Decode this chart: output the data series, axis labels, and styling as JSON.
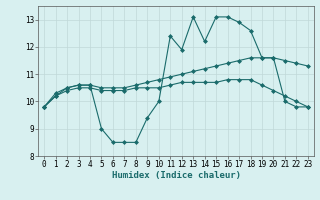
{
  "x": [
    0,
    1,
    2,
    3,
    4,
    5,
    6,
    7,
    8,
    9,
    10,
    11,
    12,
    13,
    14,
    15,
    16,
    17,
    18,
    19,
    20,
    21,
    22,
    23
  ],
  "line1": [
    9.8,
    10.3,
    10.5,
    10.6,
    10.6,
    9.0,
    8.5,
    8.5,
    8.5,
    9.4,
    10.0,
    12.4,
    11.9,
    13.1,
    12.2,
    13.1,
    13.1,
    12.9,
    12.6,
    11.6,
    11.6,
    10.0,
    9.8,
    9.8
  ],
  "line2": [
    9.8,
    10.2,
    10.5,
    10.6,
    10.6,
    10.5,
    10.5,
    10.5,
    10.6,
    10.7,
    10.8,
    10.9,
    11.0,
    11.1,
    11.2,
    11.3,
    11.4,
    11.5,
    11.6,
    11.6,
    11.6,
    11.5,
    11.4,
    11.3
  ],
  "line3": [
    9.8,
    10.2,
    10.4,
    10.5,
    10.5,
    10.4,
    10.4,
    10.4,
    10.5,
    10.5,
    10.5,
    10.6,
    10.7,
    10.7,
    10.7,
    10.7,
    10.8,
    10.8,
    10.8,
    10.6,
    10.4,
    10.2,
    10.0,
    9.8
  ],
  "line_color": "#1a6b6b",
  "bg_color": "#d8f0f0",
  "grid_color": "#c0d8d8",
  "xlabel": "Humidex (Indice chaleur)",
  "ylim": [
    8,
    13.5
  ],
  "xlim": [
    -0.5,
    23.5
  ],
  "yticks": [
    8,
    9,
    10,
    11,
    12,
    13
  ],
  "xticks": [
    0,
    1,
    2,
    3,
    4,
    5,
    6,
    7,
    8,
    9,
    10,
    11,
    12,
    13,
    14,
    15,
    16,
    17,
    18,
    19,
    20,
    21,
    22,
    23
  ],
  "tick_fontsize": 5.5,
  "xlabel_fontsize": 6.5,
  "marker": "D",
  "markersize": 2.0,
  "linewidth": 0.8
}
